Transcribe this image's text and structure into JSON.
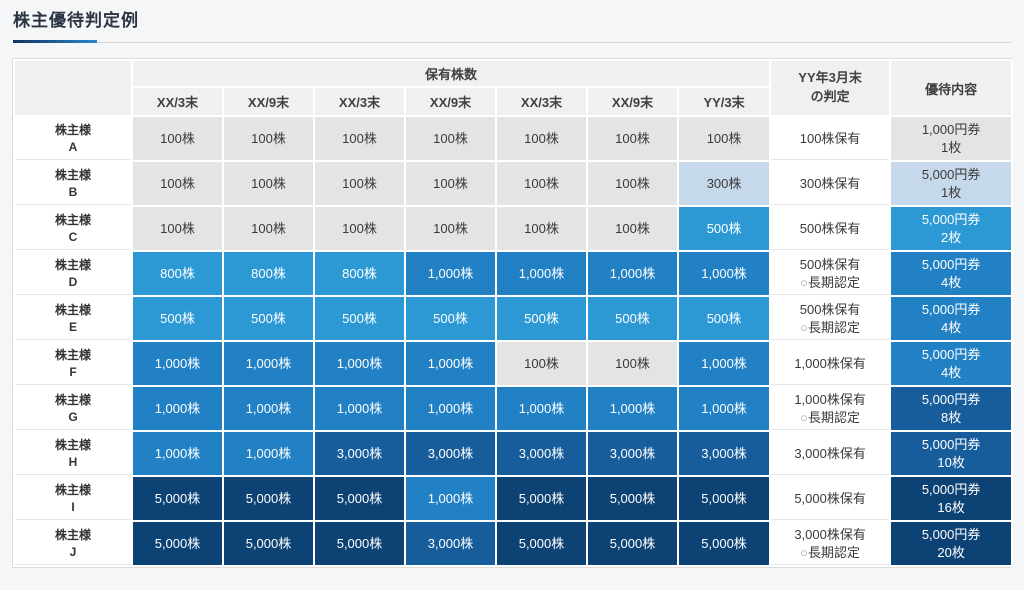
{
  "title": "株主優待判定例",
  "colors": {
    "accent_underline_start": "#16335e",
    "accent_underline_end": "#2b84ca",
    "cell_gray": "#e4e4e4",
    "cell_pale_blue": "#c6d9ea",
    "cell_bright_blue": "#2c99d5",
    "cell_mid_blue": "#2181c4",
    "cell_dark_blue": "#175d9c",
    "cell_navy": "#0d4274",
    "header_bg": "#f0f0f1"
  },
  "table": {
    "group_header": "保有株数",
    "judgement_header": [
      "YY年3月末",
      "の判定"
    ],
    "benefit_header": "優待内容",
    "period_headers": [
      "XX/3末",
      "XX/9末",
      "XX/3末",
      "XX/9末",
      "XX/3末",
      "XX/9末",
      "YY/3末"
    ],
    "label_prefix": "株主様",
    "level_map": {
      "100株": "lv0",
      "300株": "lv1",
      "500株": "lv2",
      "800株": "lv2",
      "1,000株": "lv3",
      "3,000株": "lv4",
      "5,000株": "lv5"
    },
    "rows": [
      {
        "id": "A",
        "holdings": [
          "100株",
          "100株",
          "100株",
          "100株",
          "100株",
          "100株",
          "100株"
        ],
        "judgement": [
          "100株保有"
        ],
        "benefit": {
          "lines": [
            "1,000円券",
            "1枚"
          ],
          "level": "lv0"
        }
      },
      {
        "id": "B",
        "holdings": [
          "100株",
          "100株",
          "100株",
          "100株",
          "100株",
          "100株",
          "300株"
        ],
        "judgement": [
          "300株保有"
        ],
        "benefit": {
          "lines": [
            "5,000円券",
            "1枚"
          ],
          "level": "lv1"
        }
      },
      {
        "id": "C",
        "holdings": [
          "100株",
          "100株",
          "100株",
          "100株",
          "100株",
          "100株",
          "500株"
        ],
        "judgement": [
          "500株保有"
        ],
        "benefit": {
          "lines": [
            "5,000円券",
            "2枚"
          ],
          "level": "lv2"
        }
      },
      {
        "id": "D",
        "holdings": [
          "800株",
          "800株",
          "800株",
          "1,000株",
          "1,000株",
          "1,000株",
          "1,000株"
        ],
        "judgement": [
          "500株保有",
          "○長期認定"
        ],
        "benefit": {
          "lines": [
            "5,000円券",
            "4枚"
          ],
          "level": "lv3"
        }
      },
      {
        "id": "E",
        "holdings": [
          "500株",
          "500株",
          "500株",
          "500株",
          "500株",
          "500株",
          "500株"
        ],
        "judgement": [
          "500株保有",
          "○長期認定"
        ],
        "benefit": {
          "lines": [
            "5,000円券",
            "4枚"
          ],
          "level": "lv3"
        }
      },
      {
        "id": "F",
        "holdings": [
          "1,000株",
          "1,000株",
          "1,000株",
          "1,000株",
          "100株",
          "100株",
          "1,000株"
        ],
        "judgement": [
          "1,000株保有"
        ],
        "benefit": {
          "lines": [
            "5,000円券",
            "4枚"
          ],
          "level": "lv3"
        }
      },
      {
        "id": "G",
        "holdings": [
          "1,000株",
          "1,000株",
          "1,000株",
          "1,000株",
          "1,000株",
          "1,000株",
          "1,000株"
        ],
        "judgement": [
          "1,000株保有",
          "○長期認定"
        ],
        "benefit": {
          "lines": [
            "5,000円券",
            "8枚"
          ],
          "level": "lv4"
        }
      },
      {
        "id": "H",
        "holdings": [
          "1,000株",
          "1,000株",
          "3,000株",
          "3,000株",
          "3,000株",
          "3,000株",
          "3,000株"
        ],
        "judgement": [
          "3,000株保有"
        ],
        "benefit": {
          "lines": [
            "5,000円券",
            "10枚"
          ],
          "level": "lv4"
        }
      },
      {
        "id": "I",
        "holdings": [
          "5,000株",
          "5,000株",
          "5,000株",
          "1,000株",
          "5,000株",
          "5,000株",
          "5,000株"
        ],
        "judgement": [
          "5,000株保有"
        ],
        "benefit": {
          "lines": [
            "5,000円券",
            "16枚"
          ],
          "level": "lv5"
        }
      },
      {
        "id": "J",
        "holdings": [
          "5,000株",
          "5,000株",
          "5,000株",
          "3,000株",
          "5,000株",
          "5,000株",
          "5,000株"
        ],
        "judgement": [
          "3,000株保有",
          "○長期認定"
        ],
        "benefit": {
          "lines": [
            "5,000円券",
            "20枚"
          ],
          "level": "lv5"
        }
      }
    ]
  }
}
